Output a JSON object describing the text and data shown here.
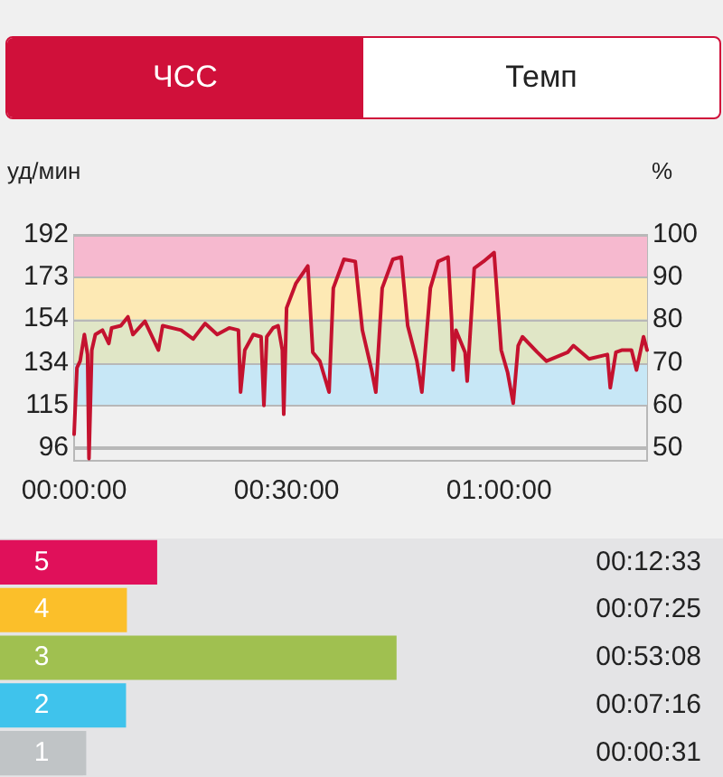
{
  "chart_data": [
    {
      "type": "line",
      "annotations": [
        "ЧСС",
        "Темп"
      ],
      "ylabel": "уд/мин",
      "y2label": "%",
      "x": [
        0,
        0.4,
        0.85,
        1.45,
        1.9,
        2.1,
        2.5,
        3.0,
        4.0,
        4.9,
        5.3,
        6.6,
        7.6,
        8.3,
        10,
        11.9,
        12.5,
        15.1,
        16.8,
        18.5,
        20.2,
        21.9,
        23.2,
        23.5,
        24.1,
        25.3,
        26.4,
        26.8,
        27.2,
        28.1,
        28.8,
        29.4,
        29.6,
        30.0,
        31.3,
        33,
        33.7,
        34.7,
        36,
        36.6,
        38.1,
        39.7,
        40.7,
        42,
        42.6,
        43.5,
        45,
        46.2,
        47.1,
        48.4,
        49.1,
        50.3,
        51.4,
        52.8,
        53.3,
        53.5,
        53.9,
        55.2,
        55.5,
        56.5,
        57.8,
        59.3,
        60.3,
        61.2,
        62,
        62.7,
        63.3,
        65.4,
        66.7,
        69.7,
        70.5,
        72.7,
        75.3,
        75.7,
        76.5,
        77.4,
        78.7,
        79.4,
        80.4,
        80.9
      ],
      "series": [
        {
          "color": "#c4122f",
          "values": [
            102,
            132,
            135,
            147,
            138,
            91,
            140,
            147,
            149,
            143,
            150,
            151,
            155,
            147,
            153,
            140,
            151,
            149,
            145,
            152,
            147,
            150,
            149,
            121,
            140,
            147,
            146,
            115,
            146,
            150,
            151,
            140,
            111,
            159,
            170,
            178,
            139,
            135,
            121,
            168,
            181,
            180,
            149,
            131,
            121,
            168,
            181,
            182,
            151,
            135,
            121,
            168,
            180,
            182,
            154,
            131,
            149,
            139,
            126,
            177,
            180,
            184,
            140,
            130,
            116,
            142,
            146,
            139,
            135,
            139,
            142,
            136,
            138,
            123,
            139,
            140,
            140,
            131,
            146,
            140
          ]
        }
      ],
      "xlim": [
        0,
        80.9
      ],
      "xticks": [
        {
          "value": 0,
          "label": "00:00:00"
        },
        {
          "value": 30,
          "label": "00:30:00"
        },
        {
          "value": 60,
          "label": "01:00:00"
        }
      ],
      "ylim": [
        90,
        192
      ],
      "yticks": [
        96,
        115,
        134,
        154,
        173,
        192
      ],
      "y2lim": [
        46.9,
        100
      ],
      "y2ticks": [
        50,
        60,
        70,
        80,
        90,
        100
      ],
      "bands": [
        {
          "axis": "y",
          "from": 173,
          "to": 192,
          "color": "#f6b9cf"
        },
        {
          "axis": "y",
          "from": 154,
          "to": 173,
          "color": "#fde9b4"
        },
        {
          "axis": "y",
          "from": 134,
          "to": 154,
          "color": "#e0e6c6"
        },
        {
          "axis": "y",
          "from": 115,
          "to": 134,
          "color": "#c7e7f6"
        }
      ],
      "grid": "y",
      "line_style": "solid",
      "marker": "none"
    },
    {
      "type": "bar",
      "orientation": "horizontal",
      "categories": [
        "5",
        "4",
        "3",
        "2",
        "1"
      ],
      "values": [
        12.55,
        7.42,
        53.13,
        7.27,
        0.52
      ],
      "colors": [
        "#e0105a",
        "#fbbf2a",
        "#a0c050",
        "#3fc3ec",
        "#c0c4c6"
      ],
      "value_labels": [
        "00:12:33",
        "00:07:25",
        "00:53:08",
        "00:07:16",
        "00:00:31"
      ]
    }
  ]
}
